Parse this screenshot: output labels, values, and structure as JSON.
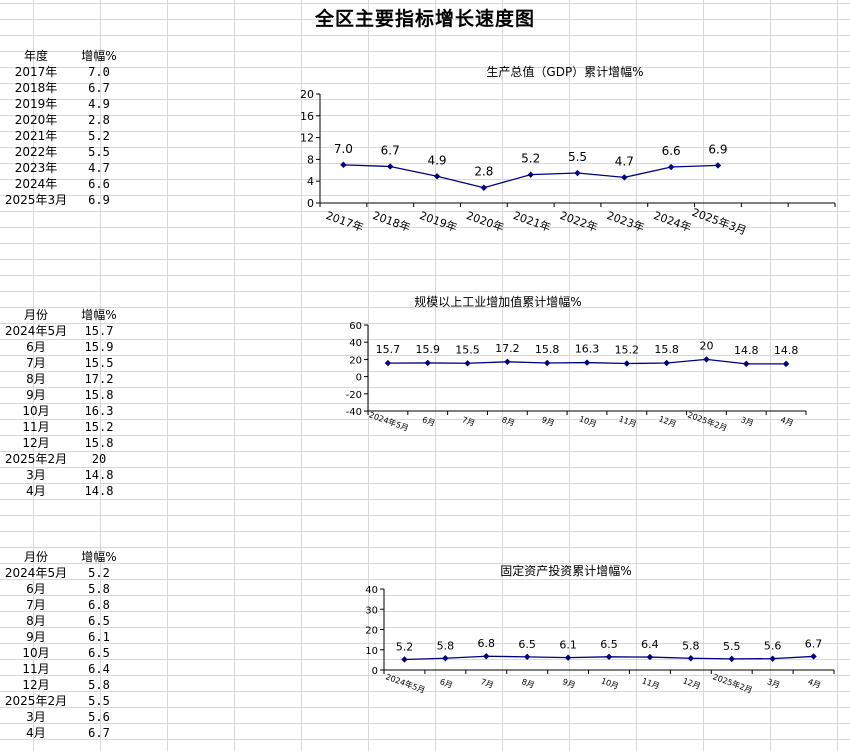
{
  "sheet": {
    "title": "全区主要指标增长速度图"
  },
  "tables": [
    {
      "col1": "年度",
      "col2": "增幅%",
      "rows": [
        [
          "2017年",
          "7.0"
        ],
        [
          "2018年",
          "6.7"
        ],
        [
          "2019年",
          "4.9"
        ],
        [
          "2020年",
          "2.8"
        ],
        [
          "2021年",
          "5.2"
        ],
        [
          "2022年",
          "5.5"
        ],
        [
          "2023年",
          "4.7"
        ],
        [
          "2024年",
          "6.6"
        ],
        [
          "2025年3月",
          "6.9"
        ]
      ]
    },
    {
      "col1": "月份",
      "col2": "增幅%",
      "rows": [
        [
          "2024年5月",
          "15.7"
        ],
        [
          "6月",
          "15.9"
        ],
        [
          "7月",
          "15.5"
        ],
        [
          "8月",
          "17.2"
        ],
        [
          "9月",
          "15.8"
        ],
        [
          "10月",
          "16.3"
        ],
        [
          "11月",
          "15.2"
        ],
        [
          "12月",
          "15.8"
        ],
        [
          "2025年2月",
          "20"
        ],
        [
          "3月",
          "14.8"
        ],
        [
          "4月",
          "14.8"
        ]
      ]
    },
    {
      "col1": "月份",
      "col2": "增幅%",
      "rows": [
        [
          "2024年5月",
          "5.2"
        ],
        [
          "6月",
          "5.8"
        ],
        [
          "7月",
          "6.8"
        ],
        [
          "8月",
          "6.5"
        ],
        [
          "9月",
          "6.1"
        ],
        [
          "10月",
          "6.5"
        ],
        [
          "11月",
          "6.4"
        ],
        [
          "12月",
          "5.8"
        ],
        [
          "2025年2月",
          "5.5"
        ],
        [
          "3月",
          "5.6"
        ],
        [
          "4月",
          "6.7"
        ]
      ]
    }
  ],
  "chart_data": [
    {
      "type": "line",
      "title": "生产总值（GDP）累计增幅%",
      "categories": [
        "2017年",
        "2018年",
        "2019年",
        "2020年",
        "2021年",
        "2022年",
        "2023年",
        "2024年",
        "2025年3月"
      ],
      "values": [
        7.0,
        6.7,
        4.9,
        2.8,
        5.2,
        5.5,
        4.7,
        6.6,
        6.9
      ],
      "labels": [
        "7.0",
        "6.7",
        "4.9",
        "2.8",
        "5.2",
        "5.5",
        "4.7",
        "6.6",
        "6.9"
      ],
      "yticks": [
        "0",
        "4",
        "8",
        "12",
        "16",
        "20"
      ],
      "ylim": [
        0,
        20
      ],
      "extra_empty_slots": 2,
      "series_color": "#000080",
      "grid": false
    },
    {
      "type": "line",
      "title": "规模以上工业增加值累计增幅%",
      "categories": [
        "2024年5月",
        "6月",
        "7月",
        "8月",
        "9月",
        "10月",
        "11月",
        "12月",
        "2025年2月",
        "3月",
        "4月"
      ],
      "values": [
        15.7,
        15.9,
        15.5,
        17.2,
        15.8,
        16.3,
        15.2,
        15.8,
        20,
        14.8,
        14.8
      ],
      "labels": [
        "15.7",
        "15.9",
        "15.5",
        "17.2",
        "15.8",
        "16.3",
        "15.2",
        "15.8",
        "20",
        "14.8",
        "14.8"
      ],
      "yticks": [
        "-40",
        "-20",
        "0",
        "20",
        "40",
        "60"
      ],
      "ylim": [
        -40,
        60
      ],
      "extra_empty_slots": 0,
      "series_color": "#000080",
      "grid": false
    },
    {
      "type": "line",
      "title": "固定资产投资累计增幅%",
      "categories": [
        "2024年5月",
        "6月",
        "7月",
        "8月",
        "9月",
        "10月",
        "11月",
        "12月",
        "2025年2月",
        "3月",
        "4月"
      ],
      "values": [
        5.2,
        5.8,
        6.8,
        6.5,
        6.1,
        6.5,
        6.4,
        5.8,
        5.5,
        5.6,
        6.7
      ],
      "labels": [
        "5.2",
        "5.8",
        "6.8",
        "6.5",
        "6.1",
        "6.5",
        "6.4",
        "5.8",
        "5.5",
        "5.6",
        "6.7"
      ],
      "yticks": [
        "0",
        "10",
        "20",
        "30",
        "40"
      ],
      "ylim": [
        0,
        40
      ],
      "extra_empty_slots": 0,
      "series_color": "#000080",
      "grid": false
    }
  ]
}
